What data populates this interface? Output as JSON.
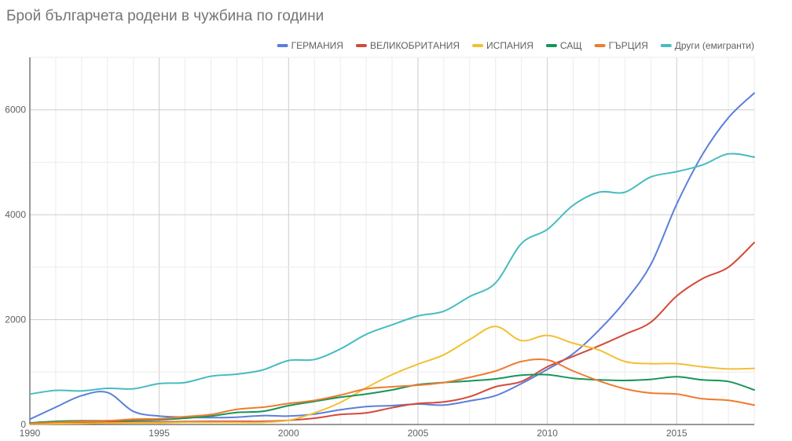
{
  "chart_data": {
    "type": "line",
    "title": "Брой българчета родени в чужбина по години",
    "xlabel": "",
    "ylabel": "",
    "xlim": [
      1990,
      2018
    ],
    "ylim": [
      0,
      7000
    ],
    "x_ticks": [
      "1990",
      "1995",
      "2000",
      "2005",
      "2010",
      "2015"
    ],
    "y_ticks": [
      "0",
      "2000",
      "4000",
      "6000"
    ],
    "grid": true,
    "legend_position": "top-right",
    "x": [
      1990,
      1991,
      1992,
      1993,
      1994,
      1995,
      1996,
      1997,
      1998,
      1999,
      2000,
      2001,
      2002,
      2003,
      2004,
      2005,
      2006,
      2007,
      2008,
      2009,
      2010,
      2011,
      2012,
      2013,
      2014,
      2015,
      2016,
      2017,
      2018
    ],
    "series": [
      {
        "name": "ГЕРМАНИЯ",
        "color": "#5b7fdb",
        "values": [
          100,
          330,
          550,
          610,
          250,
          160,
          140,
          130,
          140,
          170,
          160,
          200,
          280,
          340,
          360,
          390,
          370,
          450,
          550,
          780,
          1050,
          1350,
          1800,
          2350,
          3050,
          4200,
          5150,
          5850,
          6320
        ]
      },
      {
        "name": "ВЕЛИКОБРИТАНИЯ",
        "color": "#d44a3a",
        "values": [
          20,
          30,
          40,
          50,
          50,
          50,
          55,
          60,
          60,
          60,
          80,
          120,
          190,
          220,
          320,
          400,
          430,
          530,
          720,
          820,
          1100,
          1300,
          1500,
          1720,
          1950,
          2450,
          2780,
          3000,
          3470
        ]
      },
      {
        "name": "ИСПАНИЯ",
        "color": "#f2c033",
        "values": [
          10,
          15,
          20,
          25,
          30,
          30,
          40,
          40,
          40,
          40,
          80,
          220,
          420,
          700,
          950,
          1150,
          1330,
          1620,
          1870,
          1600,
          1700,
          1550,
          1420,
          1200,
          1160,
          1160,
          1100,
          1060,
          1070
        ]
      },
      {
        "name": "САЩ",
        "color": "#16955a",
        "values": [
          30,
          60,
          70,
          70,
          80,
          90,
          120,
          160,
          230,
          250,
          360,
          440,
          520,
          580,
          660,
          760,
          800,
          830,
          870,
          940,
          950,
          880,
          850,
          840,
          860,
          910,
          850,
          820,
          660
        ]
      },
      {
        "name": "ГЪРЦИЯ",
        "color": "#f07b2e",
        "values": [
          20,
          40,
          60,
          70,
          100,
          110,
          150,
          190,
          290,
          330,
          400,
          460,
          560,
          680,
          720,
          750,
          800,
          900,
          1020,
          1200,
          1230,
          1020,
          830,
          680,
          600,
          580,
          490,
          460,
          370
        ]
      },
      {
        "name": "Други (емигранти)",
        "color": "#47bcc0",
        "values": [
          580,
          650,
          640,
          690,
          680,
          780,
          800,
          920,
          960,
          1040,
          1220,
          1240,
          1440,
          1720,
          1900,
          2070,
          2160,
          2440,
          2700,
          3450,
          3720,
          4180,
          4430,
          4430,
          4720,
          4820,
          4950,
          5160,
          5100
        ]
      }
    ]
  }
}
